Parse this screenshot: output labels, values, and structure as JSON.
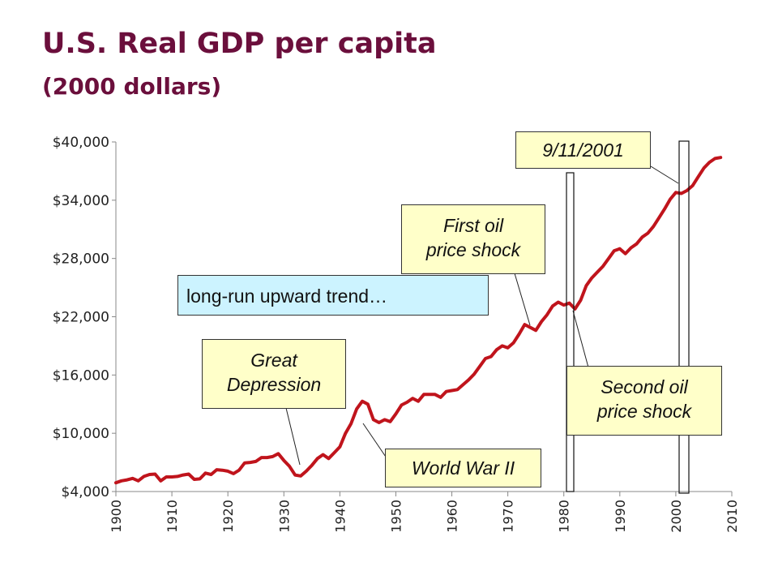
{
  "slide": {
    "title": "U.S. Real GDP per capita",
    "subtitle": "(2000 dollars)"
  },
  "annotations": {
    "trend": "long-run upward trend…",
    "depression_l1": "Great",
    "depression_l2": "Depression",
    "ww2": "World War II",
    "oil1_l1": "First oil",
    "oil1_l2": "price shock",
    "oil2_l1": "Second oil",
    "oil2_l2": "price shock",
    "sept11": "9/11/2001"
  },
  "colors": {
    "line": "#c0141c",
    "title": "#6b0f3c",
    "callout_yellow": "#ffffc9",
    "callout_blue": "#ccf3ff"
  },
  "chart_data": {
    "type": "line",
    "title": "U.S. Real GDP per capita",
    "subtitle": "(2000 dollars)",
    "xlabel": "",
    "ylabel": "",
    "xlim": [
      1900,
      2010
    ],
    "ylim": [
      4000,
      40000
    ],
    "grid": false,
    "legend": "none",
    "x_ticks": [
      1900,
      1910,
      1920,
      1930,
      1940,
      1950,
      1960,
      1970,
      1980,
      1990,
      2000,
      2010
    ],
    "y_ticks": [
      4000,
      10000,
      16000,
      22000,
      28000,
      34000,
      40000
    ],
    "y_tick_labels": [
      "$4,000",
      "$10,000",
      "$16,000",
      "$22,000",
      "$28,000",
      "$34,000",
      "$40,000"
    ],
    "x": [
      1900,
      1901,
      1902,
      1903,
      1904,
      1905,
      1906,
      1907,
      1908,
      1909,
      1910,
      1911,
      1912,
      1913,
      1914,
      1915,
      1916,
      1917,
      1918,
      1919,
      1920,
      1921,
      1922,
      1923,
      1924,
      1925,
      1926,
      1927,
      1928,
      1929,
      1930,
      1931,
      1932,
      1933,
      1934,
      1935,
      1936,
      1937,
      1938,
      1939,
      1940,
      1941,
      1942,
      1943,
      1944,
      1945,
      1946,
      1947,
      1948,
      1949,
      1950,
      1951,
      1952,
      1953,
      1954,
      1955,
      1956,
      1957,
      1958,
      1959,
      1960,
      1961,
      1962,
      1963,
      1964,
      1965,
      1966,
      1967,
      1968,
      1969,
      1970,
      1971,
      1972,
      1973,
      1974,
      1975,
      1976,
      1977,
      1978,
      1979,
      1980,
      1981,
      1982,
      1983,
      1984,
      1985,
      1986,
      1987,
      1988,
      1989,
      1990,
      1991,
      1992,
      1993,
      1994,
      1995,
      1996,
      1997,
      1998,
      1999,
      2000,
      2001,
      2002,
      2003,
      2004,
      2005,
      2006,
      2007,
      2008
    ],
    "series": [
      {
        "values": [
          4900,
          5100,
          5200,
          5350,
          5100,
          5550,
          5750,
          5800,
          5100,
          5500,
          5500,
          5550,
          5700,
          5800,
          5250,
          5300,
          5900,
          5750,
          6250,
          6200,
          6100,
          5850,
          6200,
          6950,
          7000,
          7100,
          7500,
          7500,
          7600,
          7900,
          7200,
          6600,
          5700,
          5600,
          6100,
          6700,
          7400,
          7800,
          7400,
          8000,
          8600,
          10000,
          11000,
          12500,
          13300,
          13000,
          11400,
          11100,
          11400,
          11200,
          12000,
          12900,
          13200,
          13600,
          13300,
          14000,
          14000,
          14000,
          13700,
          14300,
          14400,
          14500,
          15000,
          15500,
          16100,
          16900,
          17700,
          17900,
          18600,
          19000,
          18800,
          19300,
          20200,
          21200,
          20900,
          20600,
          21500,
          22200,
          23100,
          23500,
          23200,
          23400,
          22800,
          23700,
          25200,
          26000,
          26600,
          27200,
          28000,
          28800,
          29000,
          28500,
          29100,
          29500,
          30200,
          30600,
          31300,
          32200,
          33100,
          34100,
          34800,
          34700,
          35000,
          35500,
          36400,
          37300,
          37900,
          38300,
          38400
        ]
      }
    ]
  }
}
